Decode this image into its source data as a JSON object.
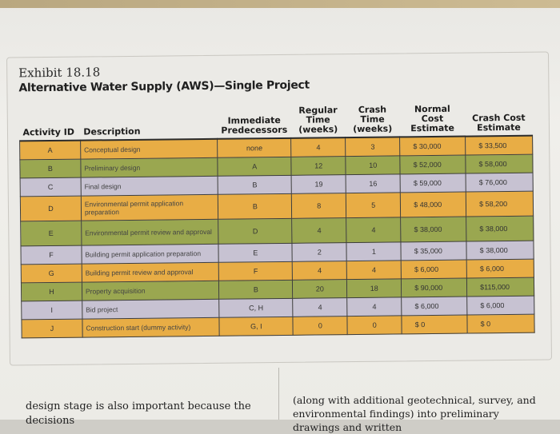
{
  "exhibit": {
    "label": "Exhibit 18.18",
    "title": "Alternative Water Supply (AWS)—Single Project"
  },
  "table": {
    "headers": [
      "Activity ID",
      "Description",
      "Immediate Predecessors",
      "Regular Time (weeks)",
      "Crash Time (weeks)",
      "Normal Cost Estimate",
      "Crash Cost Estimate"
    ],
    "rows": [
      {
        "id": "A",
        "description": "Conceptual design",
        "pred": "none",
        "regular": "4",
        "crash": "3",
        "normal_cost": "$ 30,000",
        "crash_cost": "$ 33,500",
        "color": "#e8ad45"
      },
      {
        "id": "B",
        "description": "Preliminary design",
        "pred": "A",
        "regular": "12",
        "crash": "10",
        "normal_cost": "$ 52,000",
        "crash_cost": "$ 58,000",
        "color": "#9aa750"
      },
      {
        "id": "C",
        "description": "Final design",
        "pred": "B",
        "regular": "19",
        "crash": "16",
        "normal_cost": "$ 59,000",
        "crash_cost": "$ 76,000",
        "color": "#c7c2d2"
      },
      {
        "id": "D",
        "description": "Environmental permit application preparation",
        "pred": "B",
        "regular": "8",
        "crash": "5",
        "normal_cost": "$ 48,000",
        "crash_cost": "$ 58,200",
        "color": "#e8ad45"
      },
      {
        "id": "E",
        "description": "Environmental permit review and approval",
        "pred": "D",
        "regular": "4",
        "crash": "4",
        "normal_cost": "$ 38,000",
        "crash_cost": "$ 38,000",
        "color": "#9aa750"
      },
      {
        "id": "F",
        "description": "Building permit application preparation",
        "pred": "E",
        "regular": "2",
        "crash": "1",
        "normal_cost": "$ 35,000",
        "crash_cost": "$ 38,000",
        "color": "#c7c2d2"
      },
      {
        "id": "G",
        "description": "Building permit review and approval",
        "pred": "F",
        "regular": "4",
        "crash": "4",
        "normal_cost": "$ 6,000",
        "crash_cost": "$ 6,000",
        "color": "#e8ad45"
      },
      {
        "id": "H",
        "description": "Property acquisition",
        "pred": "B",
        "regular": "20",
        "crash": "18",
        "normal_cost": "$ 90,000",
        "crash_cost": "$115,000",
        "color": "#9aa750"
      },
      {
        "id": "I",
        "description": "Bid project",
        "pred": "C, H",
        "regular": "4",
        "crash": "4",
        "normal_cost": "$ 6,000",
        "crash_cost": "$ 6,000",
        "color": "#c7c2d2"
      },
      {
        "id": "J",
        "description": "Construction start (dummy activity)",
        "pred": "G, I",
        "regular": "0",
        "crash": "0",
        "normal_cost": "$ 0",
        "crash_cost": "$ 0",
        "color": "#e8ad45"
      }
    ]
  },
  "body_text": {
    "left": "design stage is also important because the decisions",
    "right": "(along with additional geotechnical, survey, and environmental findings) into preliminary drawings and written"
  }
}
